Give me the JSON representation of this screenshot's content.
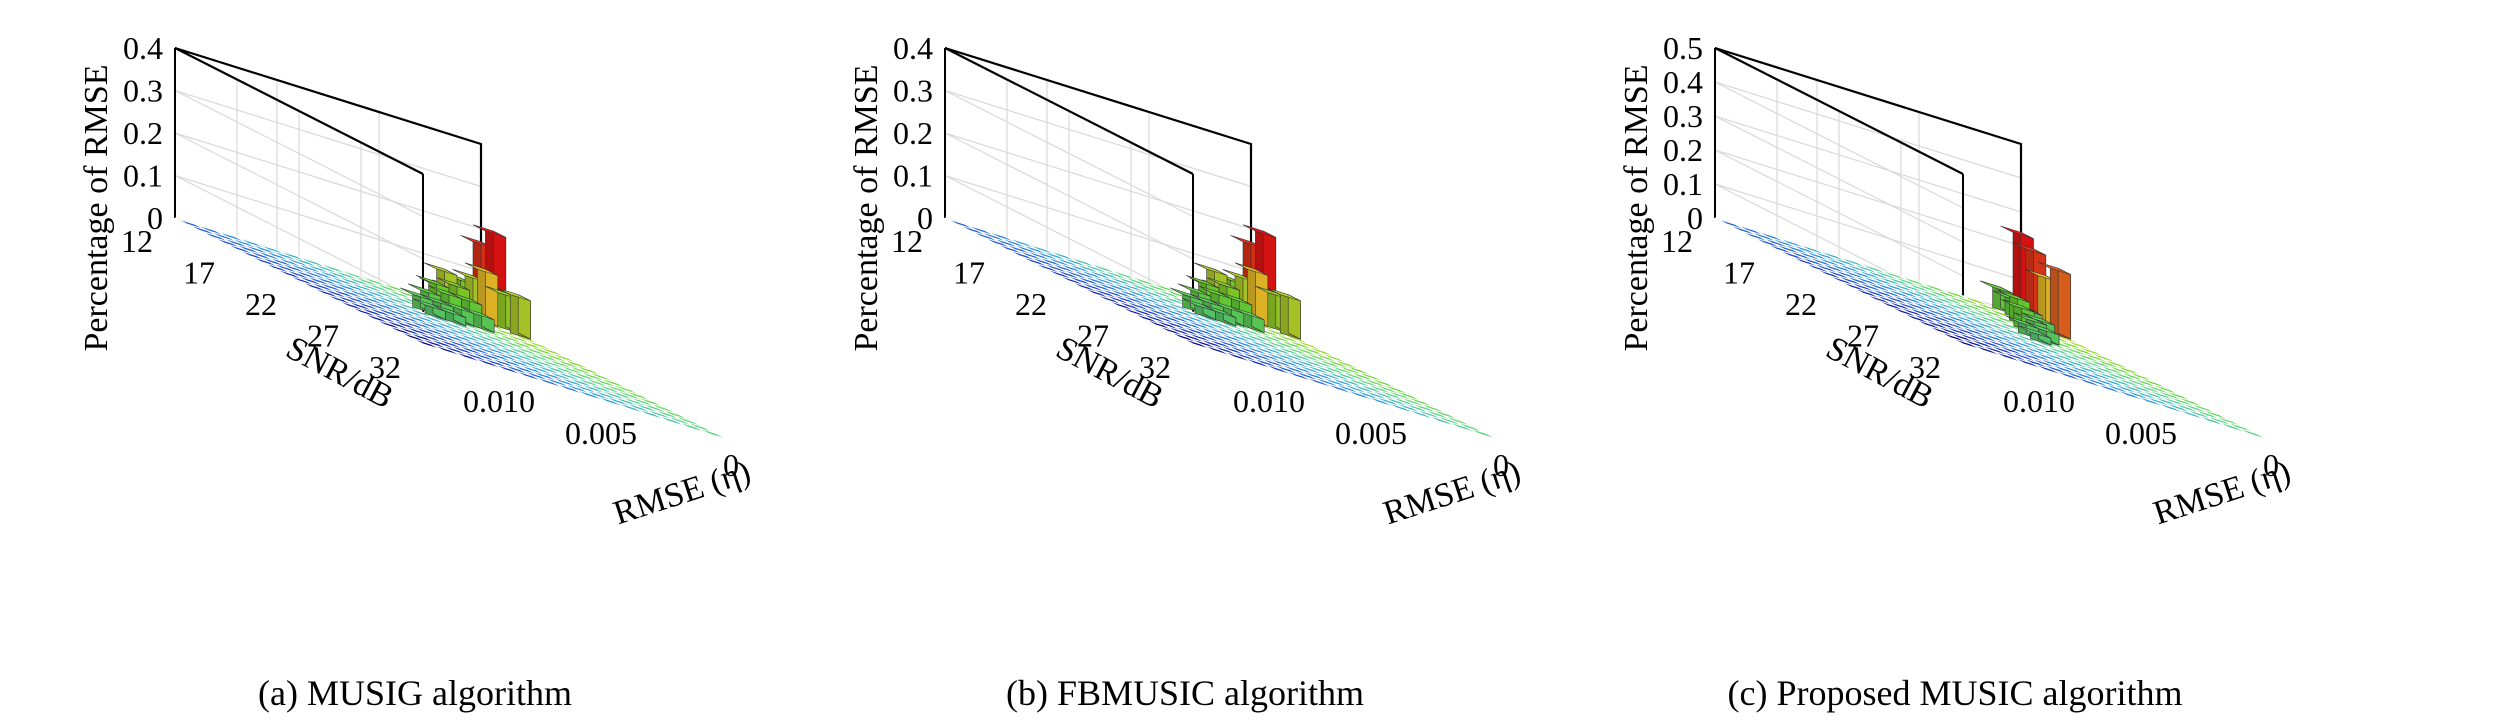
{
  "chart_data": [
    {
      "type": "bar3d",
      "caption": "(a) MUSIG algorithm",
      "zlabel": "Percentage of RMSE",
      "ylabel": "SNR/dB",
      "xlabel": "RMSE (η)",
      "z_ticks": [
        "0",
        "0.1",
        "0.2",
        "0.3",
        "0.4"
      ],
      "z_max": 0.4,
      "snr_ticks": [
        "12",
        "17",
        "22",
        "27",
        "32"
      ],
      "rmse_ticks": [
        "0.010",
        "0.005",
        "0"
      ],
      "x_steps": 15,
      "y_steps": 20,
      "bars": [
        {
          "x": 14,
          "y": 0,
          "v": 0.17
        },
        {
          "x": 14,
          "y": 1,
          "v": 0.21
        },
        {
          "x": 14,
          "y": 2,
          "v": 0.08
        },
        {
          "x": 14,
          "y": 3,
          "v": 0.09
        },
        {
          "x": 13,
          "y": 0,
          "v": 0.07
        },
        {
          "x": 13,
          "y": 1,
          "v": 0.09
        },
        {
          "x": 13,
          "y": 2,
          "v": 0.12
        },
        {
          "x": 12,
          "y": 0,
          "v": 0.04
        },
        {
          "x": 12,
          "y": 1,
          "v": 0.05
        },
        {
          "x": 11,
          "y": 2,
          "v": 0.09
        },
        {
          "x": 11,
          "y": 3,
          "v": 0.07
        },
        {
          "x": 11,
          "y": 4,
          "v": 0.05
        },
        {
          "x": 11,
          "y": 5,
          "v": 0.03
        },
        {
          "x": 10,
          "y": 3,
          "v": 0.06
        },
        {
          "x": 10,
          "y": 4,
          "v": 0.05
        },
        {
          "x": 10,
          "y": 5,
          "v": 0.03
        },
        {
          "x": 9,
          "y": 4,
          "v": 0.04
        },
        {
          "x": 9,
          "y": 5,
          "v": 0.03
        },
        {
          "x": 9,
          "y": 6,
          "v": 0.02
        },
        {
          "x": 8,
          "y": 5,
          "v": 0.03
        },
        {
          "x": 8,
          "y": 6,
          "v": 0.02
        }
      ]
    },
    {
      "type": "bar3d",
      "caption": "(b) FBMUSIC algorithm",
      "zlabel": "Percentage of RMSE",
      "ylabel": "SNR/dB",
      "xlabel": "RMSE (η)",
      "z_ticks": [
        "0",
        "0.1",
        "0.2",
        "0.3",
        "0.4"
      ],
      "z_max": 0.4,
      "snr_ticks": [
        "12",
        "17",
        "22",
        "27",
        "32"
      ],
      "rmse_ticks": [
        "0.010",
        "0.005",
        "0"
      ],
      "x_steps": 15,
      "y_steps": 20,
      "bars": [
        {
          "x": 14,
          "y": 0,
          "v": 0.17
        },
        {
          "x": 14,
          "y": 1,
          "v": 0.21
        },
        {
          "x": 14,
          "y": 2,
          "v": 0.08
        },
        {
          "x": 14,
          "y": 3,
          "v": 0.09
        },
        {
          "x": 13,
          "y": 0,
          "v": 0.07
        },
        {
          "x": 13,
          "y": 1,
          "v": 0.09
        },
        {
          "x": 13,
          "y": 2,
          "v": 0.12
        },
        {
          "x": 12,
          "y": 0,
          "v": 0.04
        },
        {
          "x": 12,
          "y": 1,
          "v": 0.05
        },
        {
          "x": 11,
          "y": 2,
          "v": 0.09
        },
        {
          "x": 11,
          "y": 3,
          "v": 0.07
        },
        {
          "x": 11,
          "y": 4,
          "v": 0.05
        },
        {
          "x": 11,
          "y": 5,
          "v": 0.03
        },
        {
          "x": 10,
          "y": 3,
          "v": 0.06
        },
        {
          "x": 10,
          "y": 4,
          "v": 0.05
        },
        {
          "x": 10,
          "y": 5,
          "v": 0.03
        },
        {
          "x": 9,
          "y": 4,
          "v": 0.04
        },
        {
          "x": 9,
          "y": 5,
          "v": 0.03
        },
        {
          "x": 9,
          "y": 6,
          "v": 0.02
        },
        {
          "x": 8,
          "y": 5,
          "v": 0.03
        },
        {
          "x": 8,
          "y": 6,
          "v": 0.02
        }
      ]
    },
    {
      "type": "bar3d",
      "caption": "(c) Proposed MUSIC algorithm",
      "zlabel": "Percentage of RMSE",
      "ylabel": "SNR/dB",
      "xlabel": "RMSE (η)",
      "z_ticks": [
        "0",
        "0.1",
        "0.2",
        "0.3",
        "0.4",
        "0.5"
      ],
      "z_max": 0.5,
      "snr_ticks": [
        "12",
        "17",
        "22",
        "27",
        "32"
      ],
      "rmse_ticks": [
        "0.010",
        "0.005",
        "0"
      ],
      "x_steps": 15,
      "y_steps": 20,
      "bars": [
        {
          "x": 14,
          "y": 0,
          "v": 0.24
        },
        {
          "x": 14,
          "y": 1,
          "v": 0.21
        },
        {
          "x": 14,
          "y": 2,
          "v": 0.15
        },
        {
          "x": 14,
          "y": 3,
          "v": 0.19
        },
        {
          "x": 13,
          "y": 0,
          "v": 0.06
        },
        {
          "x": 13,
          "y": 1,
          "v": 0.05
        },
        {
          "x": 13,
          "y": 2,
          "v": 0.04
        },
        {
          "x": 12,
          "y": 3,
          "v": 0.07
        },
        {
          "x": 12,
          "y": 4,
          "v": 0.05
        },
        {
          "x": 12,
          "y": 5,
          "v": 0.04
        },
        {
          "x": 11,
          "y": 5,
          "v": 0.06
        },
        {
          "x": 11,
          "y": 6,
          "v": 0.04
        },
        {
          "x": 11,
          "y": 7,
          "v": 0.03
        },
        {
          "x": 10,
          "y": 7,
          "v": 0.03
        },
        {
          "x": 10,
          "y": 8,
          "v": 0.02
        }
      ]
    }
  ]
}
